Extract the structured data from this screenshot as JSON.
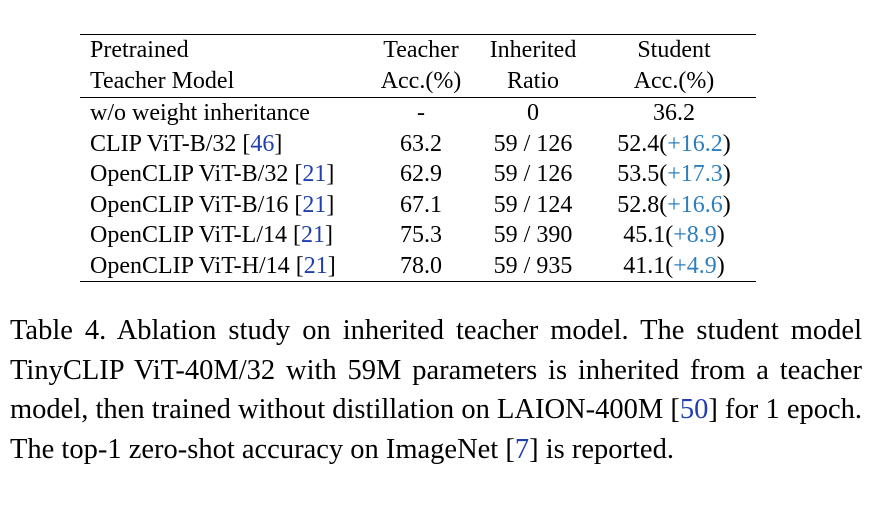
{
  "table": {
    "headers": [
      {
        "line1": "Pretrained",
        "line2": "Teacher Model"
      },
      {
        "line1": "Teacher",
        "line2": "Acc.(%)"
      },
      {
        "line1": "Inherited",
        "line2": "Ratio"
      },
      {
        "line1": "Student",
        "line2": "Acc.(%)"
      }
    ],
    "rows": [
      {
        "model": "w/o weight inheritance",
        "cite": "",
        "teacher_acc": "-",
        "ratio": "0",
        "student_acc": "36.2",
        "delta": ""
      },
      {
        "model": "CLIP ViT-B/32",
        "cite": "46",
        "teacher_acc": "63.2",
        "ratio": "59 / 126",
        "student_acc": "52.4",
        "delta": "+16.2"
      },
      {
        "model": "OpenCLIP ViT-B/32",
        "cite": "21",
        "teacher_acc": "62.9",
        "ratio": "59 / 126",
        "student_acc": "53.5",
        "delta": "+17.3"
      },
      {
        "model": "OpenCLIP ViT-B/16",
        "cite": "21",
        "teacher_acc": "67.1",
        "ratio": "59 / 124",
        "student_acc": "52.8",
        "delta": "+16.6"
      },
      {
        "model": "OpenCLIP ViT-L/14",
        "cite": "21",
        "teacher_acc": "75.3",
        "ratio": "59 / 390",
        "student_acc": "45.1",
        "delta": "+8.9"
      },
      {
        "model": "OpenCLIP ViT-H/14",
        "cite": "21",
        "teacher_acc": "78.0",
        "ratio": "59 / 935",
        "student_acc": "41.1",
        "delta": "+4.9"
      }
    ]
  },
  "caption": {
    "part1": "Table 4. Ablation study on inherited teacher model. The student model TinyCLIP ViT-40M/32 with 59M parameters is inherited from a teacher model, then trained without distillation on LAION-400M ",
    "cite1": "50",
    "part2": " for 1 epoch. The top-1 zero-shot accuracy on ImageNet ",
    "cite2": "7",
    "part3": " is reported."
  },
  "colors": {
    "citation_link": "#1f3fb0",
    "delta_text": "#2e7fbf"
  }
}
